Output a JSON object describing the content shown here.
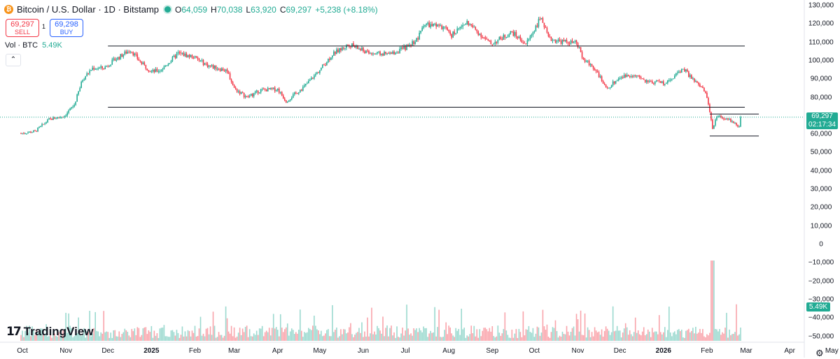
{
  "header": {
    "logo_letter": "₿",
    "title": "Bitcoin / U.S. Dollar · 1D · Bitstamp",
    "ohlc": {
      "o_key": "O",
      "o_val": "64,059",
      "h_key": "H",
      "h_val": "70,038",
      "l_key": "L",
      "l_val": "63,920",
      "c_key": "C",
      "c_val": "69,297",
      "change": "+5,238 (+8.18%)"
    }
  },
  "trade": {
    "sell_price": "69,297",
    "sell_label": "SELL",
    "spread": "1",
    "buy_price": "69,298",
    "buy_label": "BUY"
  },
  "volume_legend": {
    "label": "Vol · BTC",
    "value": "5.49K"
  },
  "collapse_icon": "chevron-up",
  "price_badge": {
    "price": "69,297",
    "countdown": "02:17:34"
  },
  "volume_badge": "5.49K",
  "brand": {
    "mark": "17",
    "name": "TradingView"
  },
  "colors": {
    "up": "#22ab94",
    "down": "#f23645",
    "line": "#131722"
  },
  "settings_icon": "gear",
  "chart_data": {
    "type": "candlestick",
    "title": "Bitcoin / U.S. Dollar · 1D · Bitstamp",
    "price_axis": {
      "ticks": [
        130000,
        120000,
        110000,
        100000,
        90000,
        80000,
        70000,
        60000,
        50000,
        40000,
        30000,
        20000,
        10000,
        0,
        -10000,
        -20000,
        -30000,
        -40000,
        -50000
      ],
      "labels": [
        "130,000",
        "120,000",
        "110,000",
        "100,000",
        "90,000",
        "80,000",
        "70,000",
        "60,000",
        "50,000",
        "40,000",
        "30,000",
        "20,000",
        "10,000",
        "0",
        "−10,000",
        "−20,000",
        "−30,000",
        "−40,000",
        "−50,000"
      ]
    },
    "time_axis": {
      "labels": [
        "Oct",
        "Nov",
        "Dec",
        "2025",
        "Feb",
        "Mar",
        "Apr",
        "May",
        "Jun",
        "Jul",
        "Aug",
        "Sep",
        "Oct",
        "Nov",
        "Dec",
        "2026",
        "Feb",
        "Mar",
        "Apr",
        "May"
      ],
      "bold": [
        "2025",
        "2026"
      ]
    },
    "close_path": [
      [
        "2024-09-30",
        60500
      ],
      [
        "2024-10-10",
        61500
      ],
      [
        "2024-10-20",
        68000
      ],
      [
        "2024-10-31",
        70000
      ],
      [
        "2024-11-07",
        76000
      ],
      [
        "2024-11-13",
        90000
      ],
      [
        "2024-11-20",
        96000
      ],
      [
        "2024-11-28",
        96000
      ],
      [
        "2024-12-05",
        100000
      ],
      [
        "2024-12-17",
        106000
      ],
      [
        "2024-12-25",
        98500
      ],
      [
        "2025-01-01",
        94000
      ],
      [
        "2025-01-08",
        95000
      ],
      [
        "2025-01-20",
        104000
      ],
      [
        "2025-01-31",
        102000
      ],
      [
        "2025-02-10",
        97500
      ],
      [
        "2025-02-24",
        94500
      ],
      [
        "2025-03-01",
        85000
      ],
      [
        "2025-03-10",
        80000
      ],
      [
        "2025-03-20",
        84000
      ],
      [
        "2025-04-01",
        84500
      ],
      [
        "2025-04-07",
        78000
      ],
      [
        "2025-04-20",
        86000
      ],
      [
        "2025-05-01",
        95000
      ],
      [
        "2025-05-10",
        103500
      ],
      [
        "2025-05-22",
        109000
      ],
      [
        "2025-06-05",
        104000
      ],
      [
        "2025-06-20",
        103500
      ],
      [
        "2025-07-01",
        107000
      ],
      [
        "2025-07-10",
        112000
      ],
      [
        "2025-07-14",
        120000
      ],
      [
        "2025-07-28",
        118000
      ],
      [
        "2025-08-03",
        114000
      ],
      [
        "2025-08-14",
        121000
      ],
      [
        "2025-08-31",
        109000
      ],
      [
        "2025-09-15",
        115500
      ],
      [
        "2025-09-25",
        109000
      ],
      [
        "2025-10-06",
        124000
      ],
      [
        "2025-10-11",
        112000
      ],
      [
        "2025-10-20",
        110500
      ],
      [
        "2025-10-31",
        109500
      ],
      [
        "2025-11-05",
        101000
      ],
      [
        "2025-11-14",
        95000
      ],
      [
        "2025-11-21",
        84500
      ],
      [
        "2025-12-01",
        91000
      ],
      [
        "2025-12-10",
        92500
      ],
      [
        "2025-12-20",
        88500
      ],
      [
        "2026-01-01",
        88000
      ],
      [
        "2026-01-08",
        91000
      ],
      [
        "2026-01-15",
        96000
      ],
      [
        "2026-01-22",
        89500
      ],
      [
        "2026-01-30",
        84000
      ],
      [
        "2026-02-02",
        77000
      ],
      [
        "2026-02-05",
        63000
      ],
      [
        "2026-02-08",
        70000
      ],
      [
        "2026-02-15",
        68500
      ],
      [
        "2026-02-20",
        66500
      ],
      [
        "2026-02-24",
        64200
      ],
      [
        "2026-02-25",
        69297
      ]
    ],
    "horizontal_lines": [
      {
        "value": 108000,
        "from": "2024-12-01",
        "to": "2026-02-28"
      },
      {
        "value": 74700,
        "from": "2024-12-01",
        "to": "2026-02-28"
      },
      {
        "value": 71000,
        "from": "2026-02-03",
        "to": "2026-03-10"
      },
      {
        "value": 59000,
        "from": "2026-02-03",
        "to": "2026-03-10"
      }
    ],
    "current_price": 69297,
    "volume": {
      "series_name": "Vol · BTC",
      "last": "5.49K",
      "baseline_price": -50000
    }
  }
}
